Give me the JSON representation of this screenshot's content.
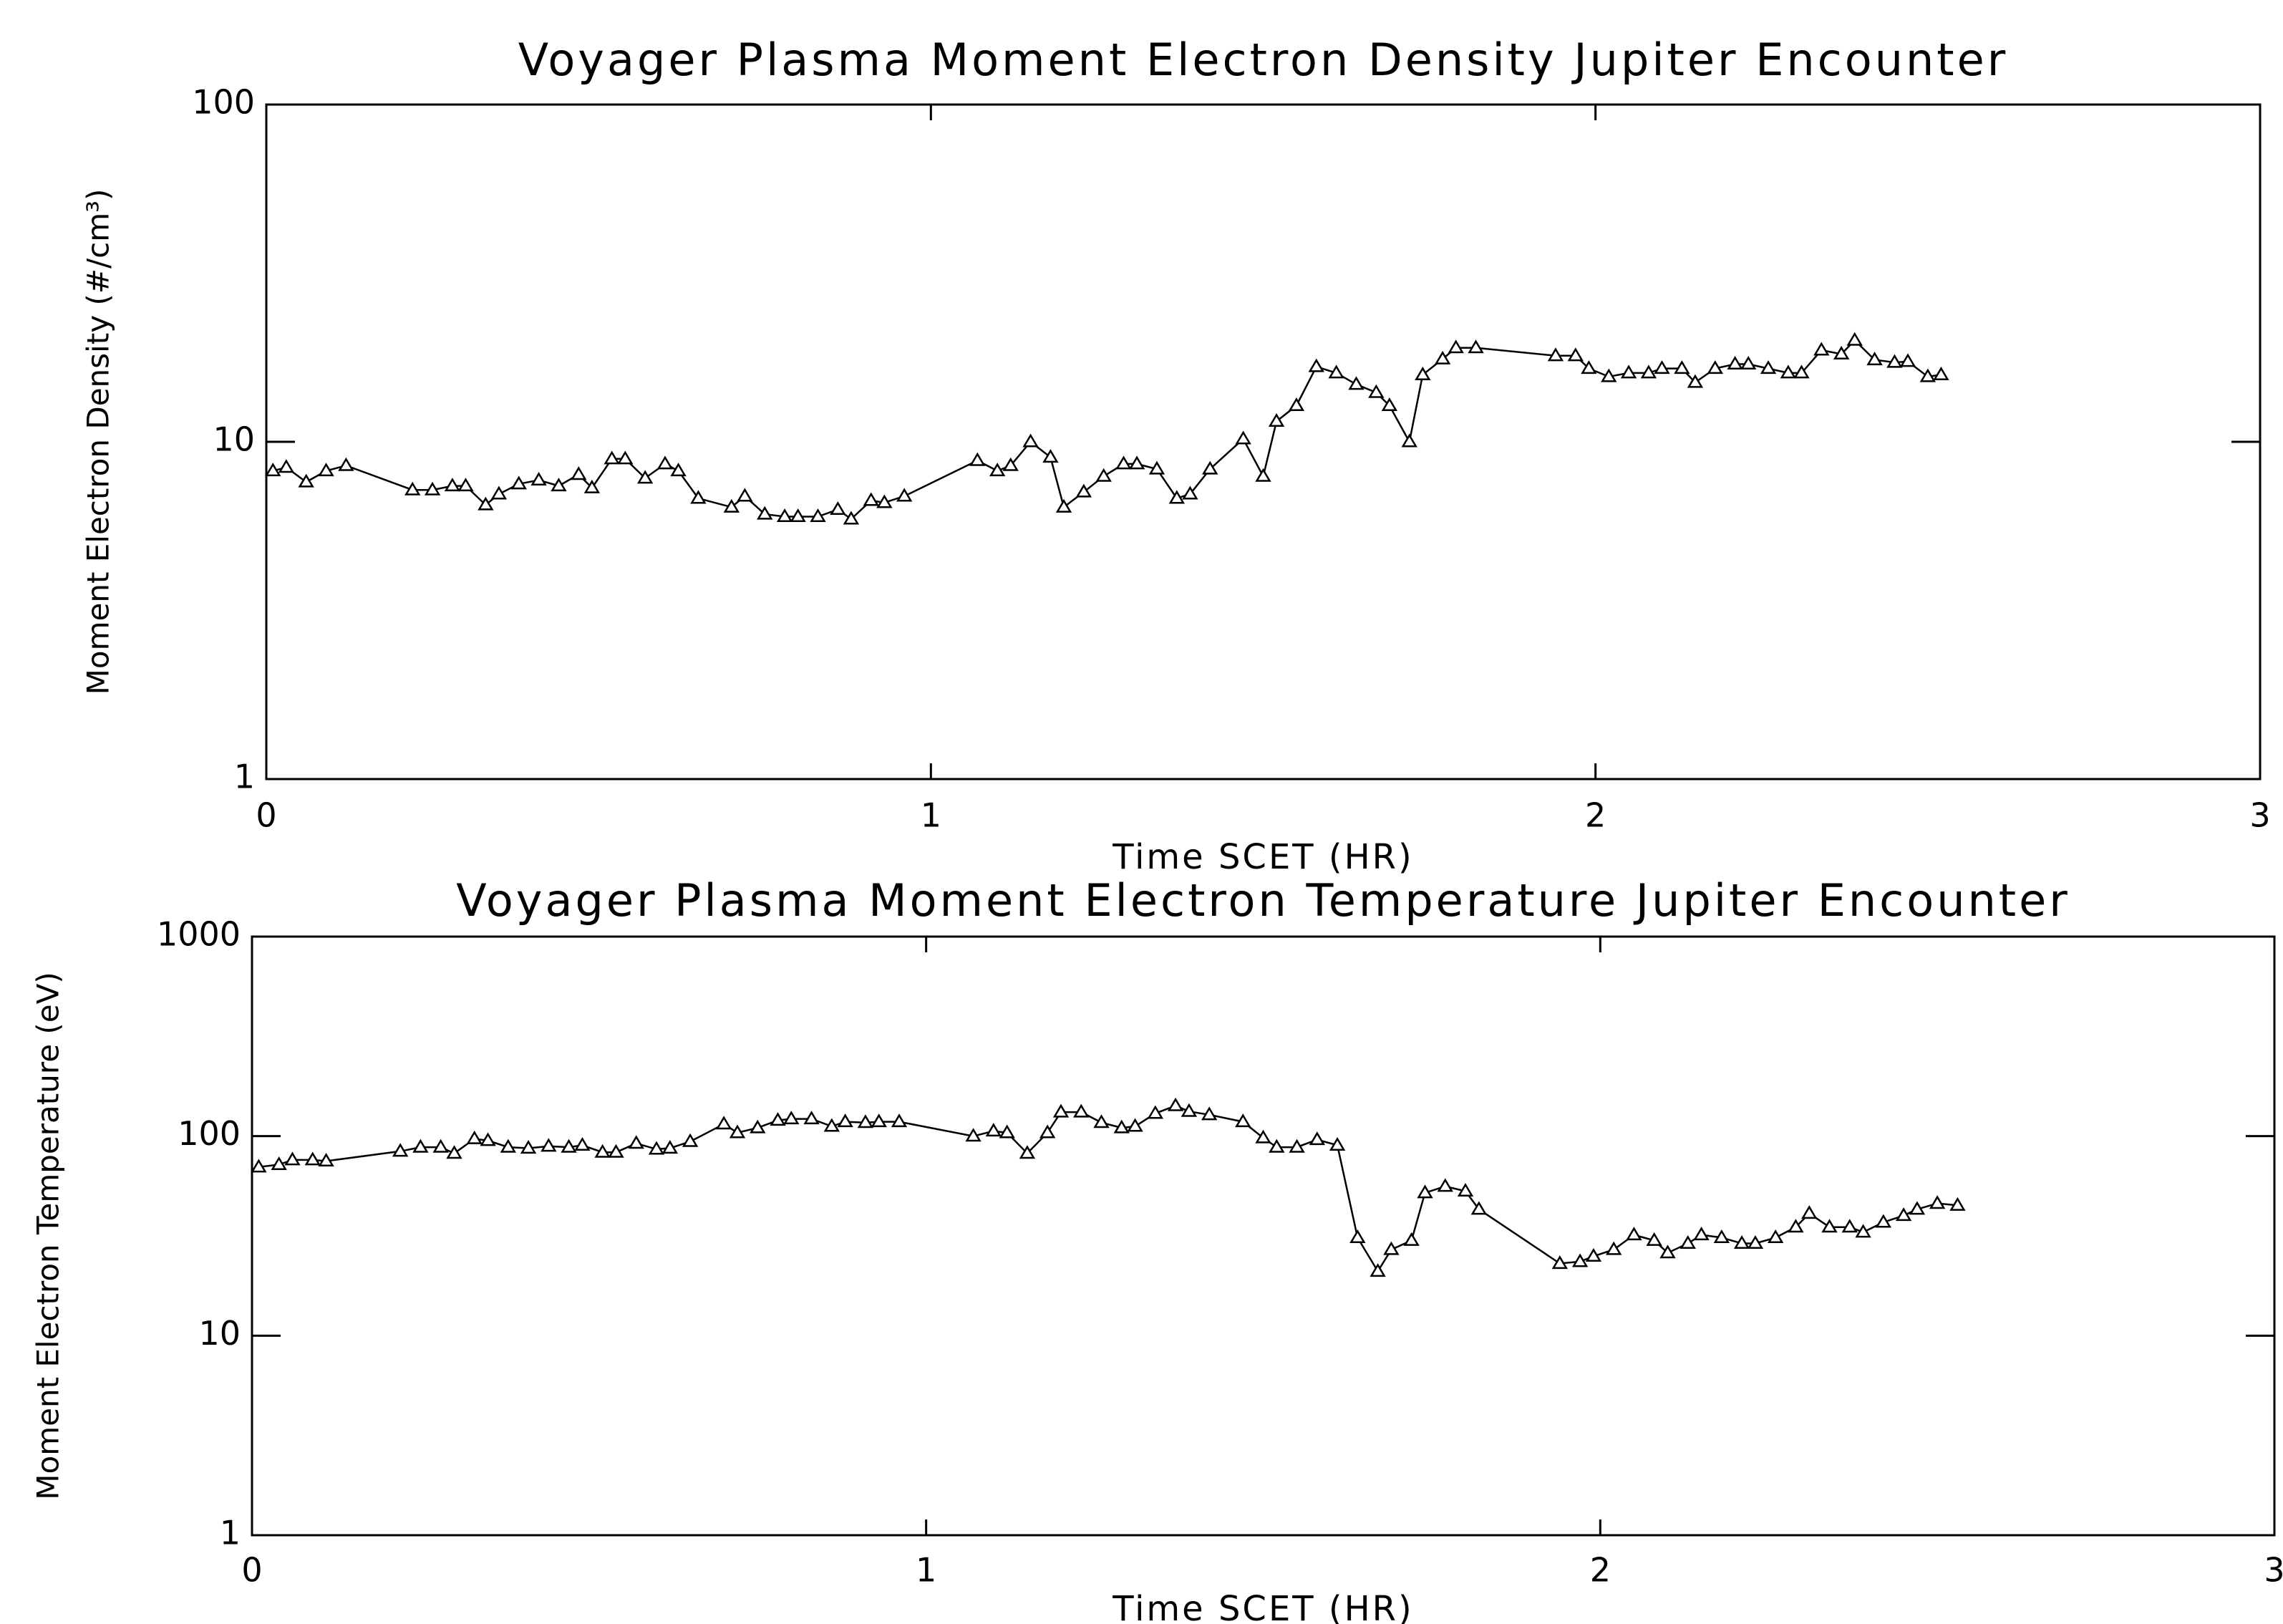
{
  "chart_data": [
    {
      "type": "line",
      "title": "Voyager Plasma Moment Electron Density Jupiter Encounter",
      "xlabel": "Time SCET (HR)",
      "ylabel": "Moment Electron Density (#/cm³)",
      "log_y": true,
      "marker": "triangle",
      "color": "#000000",
      "xlim": [
        0,
        3
      ],
      "xticks": [
        0,
        1,
        2,
        3
      ],
      "ylim": [
        1,
        100
      ],
      "yticks": [
        1,
        10,
        100
      ],
      "x": [
        0.01,
        0.03,
        0.06,
        0.09,
        0.12,
        0.22,
        0.25,
        0.28,
        0.3,
        0.33,
        0.35,
        0.38,
        0.41,
        0.44,
        0.47,
        0.49,
        0.52,
        0.54,
        0.57,
        0.6,
        0.62,
        0.65,
        0.7,
        0.72,
        0.75,
        0.78,
        0.8,
        0.83,
        0.86,
        0.88,
        0.91,
        0.93,
        0.96,
        1.07,
        1.1,
        1.12,
        1.15,
        1.18,
        1.2,
        1.23,
        1.26,
        1.29,
        1.31,
        1.34,
        1.37,
        1.39,
        1.42,
        1.47,
        1.5,
        1.52,
        1.55,
        1.58,
        1.61,
        1.64,
        1.67,
        1.69,
        1.72,
        1.74,
        1.77,
        1.79,
        1.82,
        1.94,
        1.97,
        1.99,
        2.02,
        2.05,
        2.08,
        2.1,
        2.13,
        2.15,
        2.18,
        2.21,
        2.23,
        2.26,
        2.29,
        2.31,
        2.34,
        2.37,
        2.39,
        2.42,
        2.45,
        2.47,
        2.5,
        2.52
      ],
      "values": [
        8.2,
        8.4,
        7.6,
        8.2,
        8.5,
        7.2,
        7.2,
        7.4,
        7.4,
        6.5,
        7.0,
        7.5,
        7.7,
        7.4,
        8.0,
        7.3,
        8.9,
        8.9,
        7.8,
        8.6,
        8.2,
        6.8,
        6.4,
        6.9,
        6.1,
        6.0,
        6.0,
        6.0,
        6.3,
        5.9,
        6.7,
        6.6,
        6.9,
        8.8,
        8.2,
        8.5,
        10.0,
        9.0,
        6.4,
        7.1,
        7.9,
        8.6,
        8.6,
        8.3,
        6.8,
        7.0,
        8.3,
        10.2,
        7.9,
        11.5,
        12.8,
        16.7,
        16.0,
        14.8,
        14.0,
        12.8,
        10.0,
        15.8,
        17.6,
        19.0,
        19.0,
        18.0,
        18.0,
        16.5,
        15.6,
        16.0,
        16.0,
        16.5,
        16.5,
        15.0,
        16.5,
        17.0,
        17.0,
        16.5,
        16.0,
        16.0,
        18.7,
        18.2,
        20.0,
        17.5,
        17.2,
        17.3,
        15.6,
        15.8
      ]
    },
    {
      "type": "line",
      "title": "Voyager Plasma Moment Electron Temperature Jupiter Encounter",
      "xlabel": "Time SCET (HR)",
      "ylabel": "Moment Electron Temperature (eV)",
      "log_y": true,
      "marker": "triangle",
      "color": "#000000",
      "xlim": [
        0,
        3
      ],
      "xticks": [
        0,
        1,
        2,
        3
      ],
      "ylim": [
        1,
        1000
      ],
      "yticks": [
        1,
        10,
        100,
        1000
      ],
      "x": [
        0.01,
        0.04,
        0.06,
        0.09,
        0.11,
        0.22,
        0.25,
        0.28,
        0.3,
        0.33,
        0.35,
        0.38,
        0.41,
        0.44,
        0.47,
        0.49,
        0.52,
        0.54,
        0.57,
        0.6,
        0.62,
        0.65,
        0.7,
        0.72,
        0.75,
        0.78,
        0.8,
        0.83,
        0.86,
        0.88,
        0.91,
        0.93,
        0.96,
        1.07,
        1.1,
        1.12,
        1.15,
        1.18,
        1.2,
        1.23,
        1.26,
        1.29,
        1.31,
        1.34,
        1.37,
        1.39,
        1.42,
        1.47,
        1.5,
        1.52,
        1.55,
        1.58,
        1.61,
        1.64,
        1.67,
        1.69,
        1.72,
        1.74,
        1.77,
        1.8,
        1.82,
        1.94,
        1.97,
        1.99,
        2.02,
        2.05,
        2.08,
        2.1,
        2.13,
        2.15,
        2.18,
        2.21,
        2.23,
        2.26,
        2.29,
        2.31,
        2.34,
        2.37,
        2.39,
        2.42,
        2.45,
        2.47,
        2.5,
        2.53
      ],
      "values": [
        70,
        72,
        76,
        76,
        75,
        84,
        88,
        88,
        82,
        97,
        95,
        88,
        87,
        89,
        88,
        90,
        83,
        83,
        92,
        86,
        87,
        94,
        115,
        104,
        110,
        120,
        122,
        122,
        112,
        118,
        117,
        118,
        118,
        100,
        106,
        104,
        82,
        104,
        132,
        132,
        117,
        110,
        112,
        130,
        142,
        133,
        128,
        118,
        98,
        88,
        88,
        96,
        90,
        31,
        21,
        27,
        30,
        52,
        56,
        53,
        43,
        23,
        23.5,
        25,
        27,
        32,
        30,
        26,
        29,
        32,
        31,
        29,
        29,
        31,
        35,
        41,
        35,
        35,
        33,
        37,
        40,
        43,
        46,
        45
      ]
    }
  ]
}
